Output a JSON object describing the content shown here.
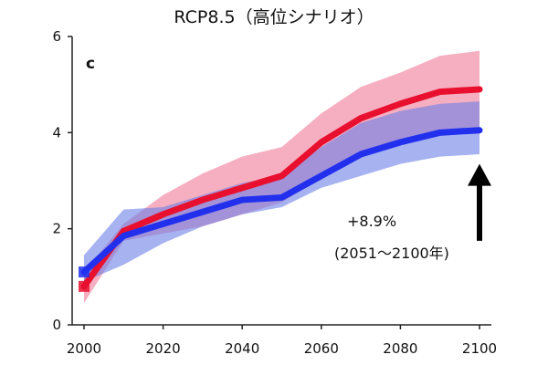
{
  "chart_data": {
    "type": "line",
    "title": "RCP8.5（高位シナリオ）",
    "panel_label": "c",
    "xlim": [
      1997,
      2103
    ],
    "ylim": [
      0,
      6
    ],
    "x_ticks": [
      "2000",
      "2020",
      "2040",
      "2060",
      "2080",
      "2100"
    ],
    "y_ticks": [
      "0",
      "2",
      "4",
      "6"
    ],
    "x": [
      2000,
      2010,
      2020,
      2030,
      2040,
      2050,
      2060,
      2070,
      2080,
      2090,
      2100
    ],
    "series": [
      {
        "color": "#e8102e",
        "band_color": "#f07a98",
        "values": [
          0.8,
          1.95,
          2.3,
          2.6,
          2.85,
          3.1,
          3.8,
          4.3,
          4.6,
          4.85,
          4.9
        ],
        "upper": [
          1.1,
          2.1,
          2.7,
          3.15,
          3.5,
          3.7,
          4.4,
          4.95,
          5.25,
          5.6,
          5.7
        ],
        "lower": [
          0.45,
          1.75,
          1.9,
          2.05,
          2.3,
          2.55,
          3.05,
          3.5,
          3.8,
          4.0,
          4.1
        ]
      },
      {
        "color": "#2230ee",
        "band_color": "#6c7ee8",
        "values": [
          1.1,
          1.85,
          2.1,
          2.35,
          2.6,
          2.65,
          3.1,
          3.55,
          3.8,
          4.0,
          4.05
        ],
        "upper": [
          1.45,
          2.4,
          2.45,
          2.7,
          2.95,
          3.1,
          3.7,
          4.2,
          4.45,
          4.6,
          4.65
        ],
        "lower": [
          0.9,
          1.25,
          1.7,
          2.05,
          2.3,
          2.45,
          2.85,
          3.1,
          3.35,
          3.5,
          3.55
        ]
      }
    ],
    "annotation": {
      "line1": "+8.9%",
      "line2": "(2051〜2100年)"
    },
    "arrow": {
      "x": 2100,
      "from": 1.75,
      "to": 3.35,
      "color": "#000000"
    }
  }
}
